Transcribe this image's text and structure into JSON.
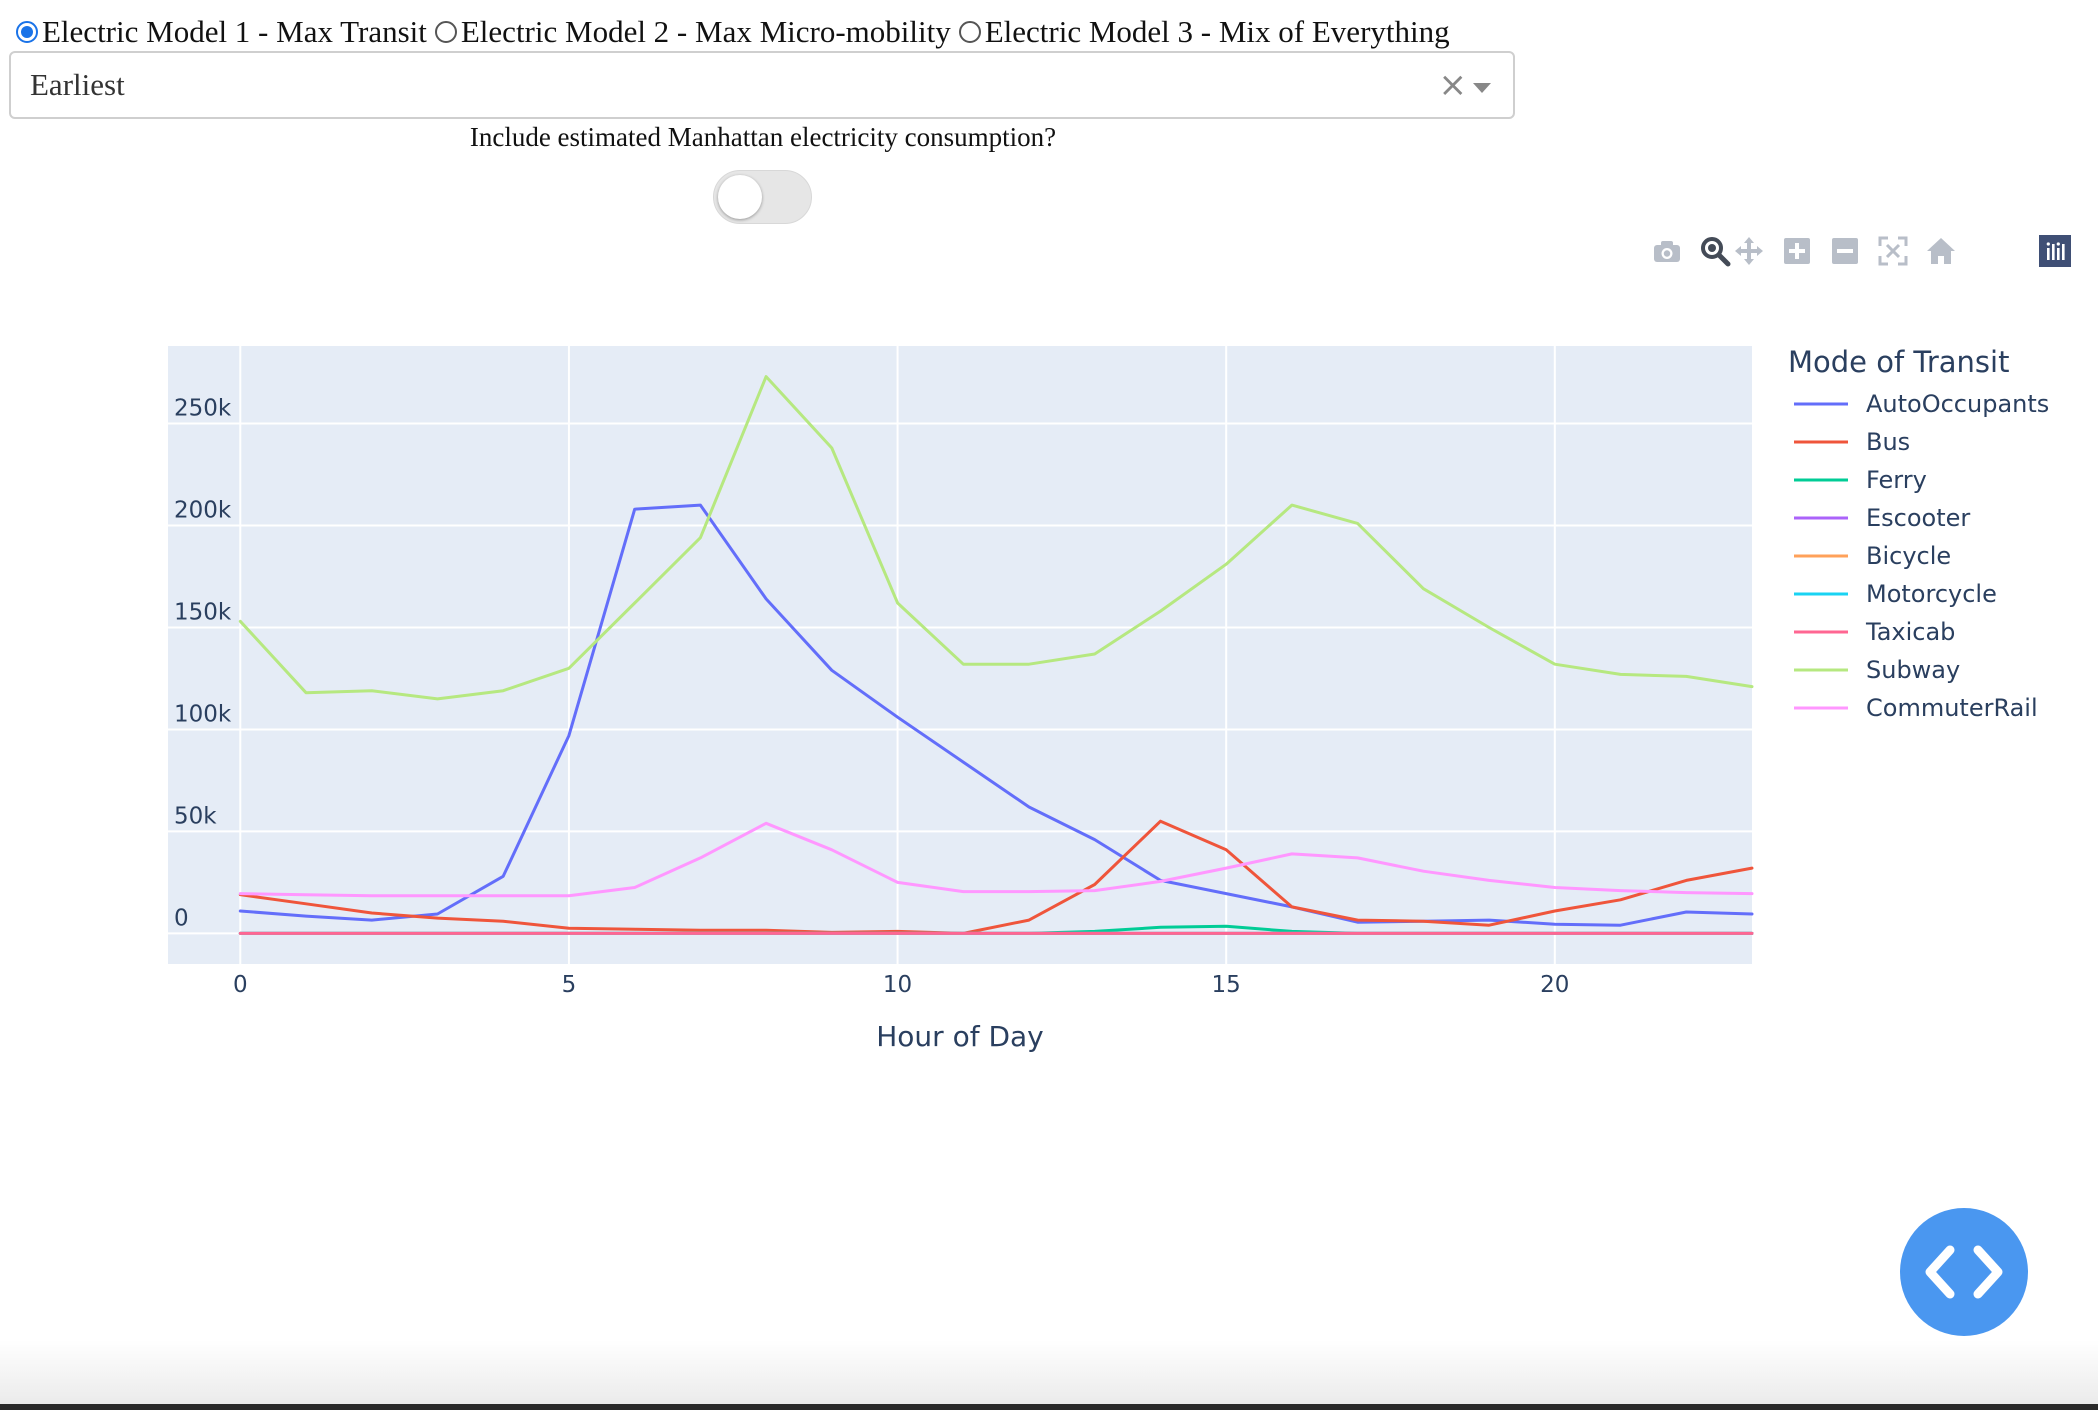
{
  "controls": {
    "radio_options": [
      {
        "label": "Electric Model 1 - Max Transit",
        "selected": true
      },
      {
        "label": "Electric Model 2 - Max Micro-mobility",
        "selected": false
      },
      {
        "label": "Electric Model 3 - Mix of Everything",
        "selected": false
      }
    ],
    "dropdown": {
      "value": "Earliest",
      "clear_glyph": "×"
    },
    "toggle": {
      "label": "Include estimated Manhattan electricity consumption?",
      "on": false
    }
  },
  "modebar": {
    "icons": [
      "camera-icon",
      "zoom-icon",
      "pan-icon",
      "zoom-in-icon",
      "zoom-out-icon",
      "autoscale-icon",
      "reset-axes-icon",
      "plotly-logo-icon"
    ],
    "active": "zoom-icon"
  },
  "colors": {
    "plot_bg": "#e5ecf6",
    "grid": "#ffffff",
    "axis_text": "#2a3f5f",
    "accent": "#1a73e8",
    "fab": "#4a97f0"
  },
  "chart_data": {
    "type": "line",
    "xlabel": "Hour of Day",
    "ylabel": "",
    "xlim": [
      -1.1,
      23.0
    ],
    "ylim": [
      -15000,
      288000
    ],
    "xticks": [
      0,
      5,
      10,
      15,
      20
    ],
    "yticks": [
      0,
      50000,
      100000,
      150000,
      200000,
      250000
    ],
    "ytick_labels": [
      "0",
      "50k",
      "100k",
      "150k",
      "200k",
      "250k"
    ],
    "grid": true,
    "legend": {
      "title": "Mode of Transit",
      "placement": "right"
    },
    "x": [
      0,
      1,
      2,
      3,
      4,
      5,
      6,
      7,
      8,
      9,
      10,
      11,
      12,
      13,
      14,
      15,
      16,
      17,
      18,
      19,
      20,
      21,
      22,
      23
    ],
    "series": [
      {
        "name": "AutoOccupants",
        "color": "#636efa",
        "values": [
          11000,
          8500,
          6500,
          9500,
          28000,
          97000,
          208000,
          210000,
          164000,
          129000,
          106000,
          84000,
          62000,
          46000,
          26000,
          19500,
          13000,
          5500,
          6000,
          6500,
          4500,
          4000,
          10500,
          9500
        ]
      },
      {
        "name": "Bus",
        "color": "#ef553b",
        "values": [
          19000,
          14500,
          10000,
          7500,
          6000,
          2500,
          2000,
          1500,
          1500,
          500,
          1000,
          0,
          6500,
          24000,
          55000,
          41000,
          13000,
          6500,
          6000,
          4000,
          11000,
          16500,
          26000,
          32000
        ]
      },
      {
        "name": "Ferry",
        "color": "#00cc96",
        "values": [
          0,
          0,
          0,
          0,
          0,
          0,
          0,
          0,
          0,
          0,
          0,
          0,
          0,
          1000,
          3000,
          3500,
          1000,
          0,
          0,
          0,
          0,
          0,
          0,
          0
        ]
      },
      {
        "name": "Escooter",
        "color": "#ab63fa",
        "values": [
          0,
          0,
          0,
          0,
          0,
          0,
          0,
          0,
          0,
          0,
          0,
          0,
          0,
          0,
          0,
          0,
          0,
          0,
          0,
          0,
          0,
          0,
          0,
          0
        ]
      },
      {
        "name": "Bicycle",
        "color": "#ffa15a",
        "values": [
          0,
          0,
          0,
          0,
          0,
          0,
          0,
          0,
          0,
          0,
          0,
          0,
          0,
          0,
          0,
          0,
          0,
          0,
          0,
          0,
          0,
          0,
          0,
          0
        ]
      },
      {
        "name": "Motorcycle",
        "color": "#19d3f3",
        "values": [
          0,
          0,
          0,
          0,
          0,
          0,
          0,
          0,
          0,
          0,
          0,
          0,
          0,
          0,
          0,
          0,
          0,
          0,
          0,
          0,
          0,
          0,
          0,
          0
        ]
      },
      {
        "name": "Taxicab",
        "color": "#ff6692",
        "values": [
          0,
          0,
          0,
          0,
          0,
          0,
          0,
          0,
          0,
          0,
          0,
          0,
          0,
          0,
          0,
          0,
          0,
          0,
          0,
          0,
          0,
          0,
          0,
          0
        ]
      },
      {
        "name": "Subway",
        "color": "#b6e880",
        "values": [
          153000,
          118000,
          119000,
          115000,
          119000,
          130000,
          162000,
          194000,
          273000,
          238000,
          162000,
          132000,
          132000,
          137000,
          158000,
          181000,
          210000,
          201000,
          169000,
          150000,
          132000,
          127000,
          126000,
          121000
        ]
      },
      {
        "name": "CommuterRail",
        "color": "#ff97ff",
        "values": [
          19500,
          19000,
          18500,
          18500,
          18500,
          18500,
          22500,
          37000,
          54000,
          41000,
          25000,
          20500,
          20500,
          21000,
          25500,
          32000,
          39000,
          37000,
          30500,
          26000,
          22500,
          21000,
          20000,
          19500
        ]
      }
    ]
  }
}
